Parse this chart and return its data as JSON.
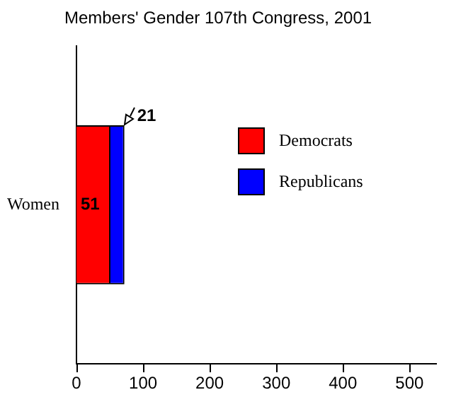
{
  "chart_data": {
    "type": "bar",
    "title": "Members' Gender 107th Congress, 2001",
    "orientation": "horizontal",
    "stacked": true,
    "categories": [
      "Women"
    ],
    "series": [
      {
        "name": "Democrats",
        "color": "#ff0000",
        "values": [
          51
        ]
      },
      {
        "name": "Republicans",
        "color": "#0000ff",
        "values": [
          21
        ]
      }
    ],
    "xlim": [
      0,
      540
    ],
    "xticks": [
      0,
      100,
      200,
      300,
      400,
      500
    ],
    "data_labels": true,
    "legend": "right",
    "grid": false
  }
}
